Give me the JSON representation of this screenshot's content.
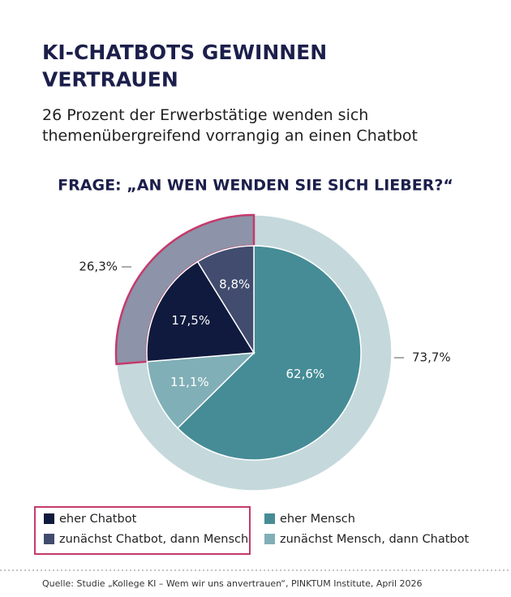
{
  "chart_data": {
    "type": "nested-pie",
    "title": "KI-CHATBOTS GEWINNEN VERTRAUEN",
    "subtitle": "26 Prozent der Erwerbstätige wenden sich themenübergreifend vorrangig an einen Chatbot",
    "question": "FRAGE: „AN WEN WENDEN SIE SICH LIEBER?“",
    "categories": [
      "eher Chatbot",
      "zunächst Chatbot, dann Mensch",
      "eher Mensch",
      "zunächst Mensch, dann Chatbot"
    ],
    "values": [
      17.5,
      8.8,
      62.6,
      11.1
    ],
    "value_labels": [
      "17,5%",
      "8,8%",
      "62,6%",
      "11,1%"
    ],
    "colors": [
      "#0f1a3e",
      "#414c6e",
      "#458c96",
      "#80afb7"
    ],
    "outer": {
      "values": [
        73.7,
        26.3
      ],
      "value_labels": [
        "73,7%",
        "26,3%"
      ],
      "colors": [
        "#c5d9dc",
        "#8d93a8"
      ]
    },
    "highlight_color": "#c43a6c",
    "source": "Quelle: Studie „Kollege KI – Wem wir uns anvertrauen“, PINKTUM Institute, April 2026"
  }
}
